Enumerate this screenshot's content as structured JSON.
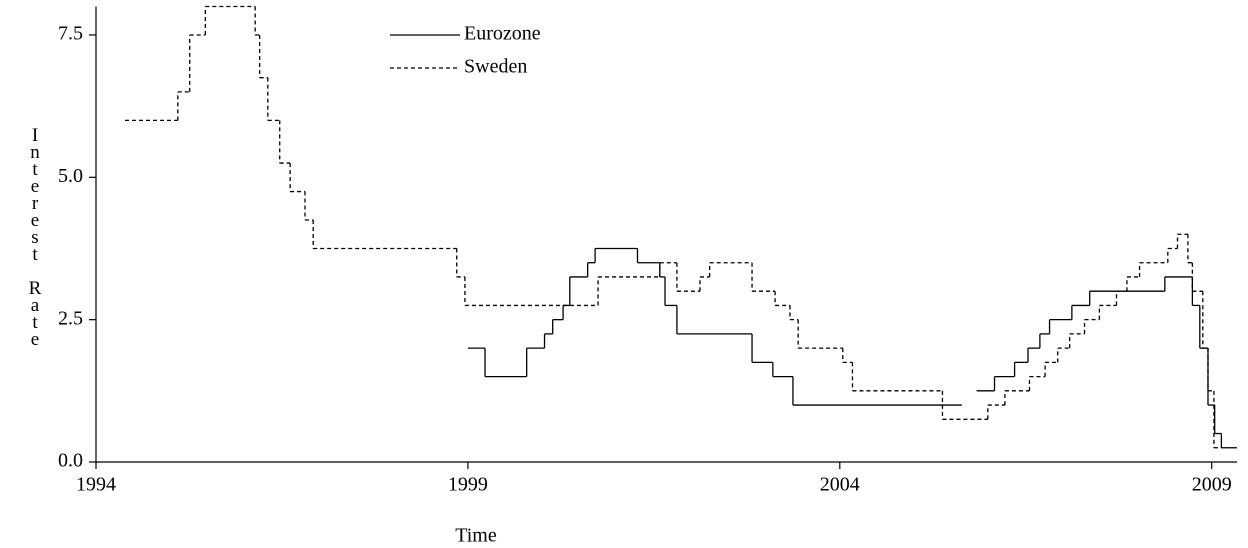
{
  "chart_data": {
    "type": "step",
    "x_label": "Time",
    "y_label": "Interest Rate",
    "xlim": [
      1994,
      2009.34
    ],
    "ylim": [
      0,
      8
    ],
    "xticks": [
      1994,
      1999,
      2004,
      2009
    ],
    "yticks": [
      {
        "value": 0,
        "label": "0.0"
      },
      {
        "value": 2.5,
        "label": "2.5"
      },
      {
        "value": 5,
        "label": "5.0"
      },
      {
        "value": 7.5,
        "label": "7.5"
      }
    ],
    "legend": "top",
    "series": [
      {
        "name": "Eurozone",
        "color": "#000000",
        "linestyle": "solid",
        "x": [
          1999.0,
          1999.23,
          1999.79,
          2000.03,
          2000.14,
          2000.28,
          2000.37,
          2000.61,
          2000.71,
          2001.28,
          2001.58,
          2001.65,
          2001.81,
          2002.82,
          2003.1,
          2003.37,
          2005.64,
          2005.8,
          2005.84,
          2006.08,
          2006.35,
          2006.53,
          2006.69,
          2006.82,
          2007.12,
          2007.36,
          2008.37,
          2008.74,
          2008.84,
          2008.95,
          2009.04,
          2009.13,
          2009.34
        ],
        "values": [
          2.0,
          1.5,
          2.0,
          2.25,
          2.5,
          2.75,
          3.25,
          3.5,
          3.75,
          3.5,
          3.25,
          2.75,
          2.25,
          1.75,
          1.5,
          1.0,
          1.0,
          null,
          1.25,
          1.5,
          1.75,
          2.0,
          2.25,
          2.5,
          2.75,
          3.0,
          3.25,
          2.75,
          2.0,
          1.0,
          0.5,
          0.25,
          0.25
        ]
      },
      {
        "name": "Sweden",
        "color": "#000000",
        "linestyle": "dashed",
        "x": [
          1994.39,
          1995.1,
          1995.26,
          1995.47,
          1996.14,
          1996.2,
          1996.31,
          1996.47,
          1996.61,
          1996.81,
          1996.92,
          1998.85,
          1998.96,
          2000.75,
          2001.58,
          2001.81,
          2002.12,
          2002.25,
          2002.82,
          2003.13,
          2003.33,
          2003.44,
          2004.04,
          2004.17,
          2005.38,
          2005.99,
          2006.22,
          2006.55,
          2006.76,
          2006.93,
          2007.09,
          2007.29,
          2007.49,
          2007.72,
          2007.86,
          2008.03,
          2008.41,
          2008.54,
          2008.68,
          2008.74,
          2008.88,
          2008.95,
          2009.03,
          2009.13
        ],
        "values": [
          6.0,
          6.5,
          7.5,
          8.0,
          7.5,
          6.75,
          6.0,
          5.25,
          4.75,
          4.25,
          3.75,
          3.25,
          2.75,
          3.25,
          3.5,
          3.0,
          3.25,
          3.5,
          3.0,
          2.75,
          2.5,
          2.0,
          1.75,
          1.25,
          0.75,
          1.0,
          1.25,
          1.5,
          1.75,
          2.0,
          2.25,
          2.5,
          2.75,
          3.0,
          3.25,
          3.5,
          3.75,
          4.0,
          3.5,
          3.0,
          2.0,
          1.25,
          0.25,
          0.25
        ]
      }
    ]
  }
}
